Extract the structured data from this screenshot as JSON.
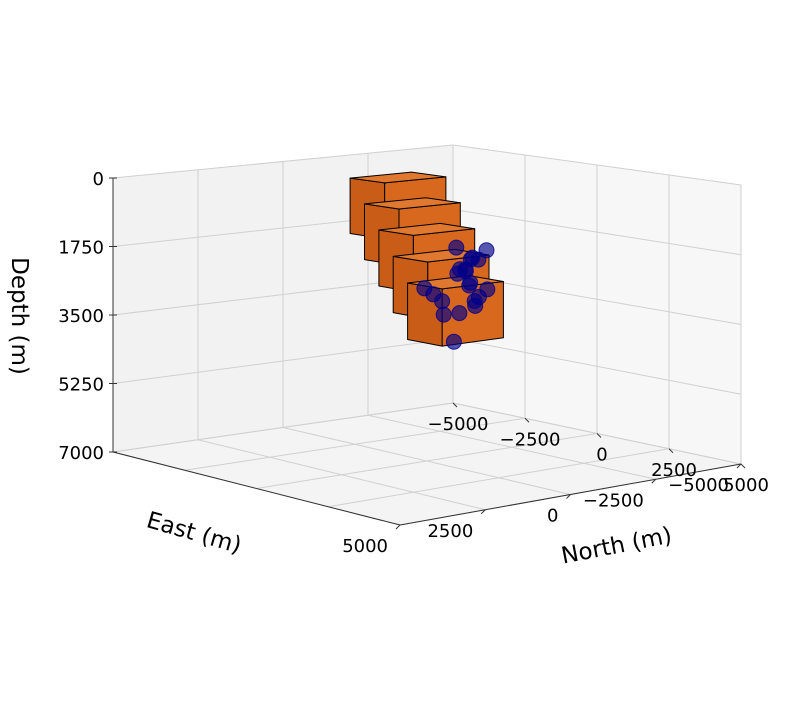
{
  "chart_data": {
    "type": "scatter3d",
    "axes": {
      "x": {
        "label": "East (m)",
        "ticks": [
          5000,
          2500,
          0,
          -2500,
          -5000
        ],
        "tick_labels": [
          "5000",
          "2500",
          "0",
          "−2500",
          "−5000"
        ],
        "range": [
          5000,
          -5000
        ]
      },
      "y": {
        "label": "North (m)",
        "ticks": [
          5000,
          2500,
          0,
          -2500,
          -5000
        ],
        "tick_labels": [
          "5000",
          "2500",
          "0",
          "−2500",
          "−5000"
        ],
        "range": [
          5000,
          -5000
        ]
      },
      "z": {
        "label": "Depth (m)",
        "ticks": [
          0,
          1750,
          3500,
          5250,
          7000
        ],
        "tick_labels": [
          "0",
          "1750",
          "3500",
          "5250",
          "7000"
        ],
        "range": [
          0,
          7000
        ],
        "inverted": true
      }
    },
    "grid": true,
    "boxes": {
      "color": "#D9681F",
      "items": [
        {
          "east": 0,
          "north": -1000,
          "depth_top": 0,
          "depth_bottom": 1400
        },
        {
          "east": 0,
          "north": -500,
          "depth_top": 600,
          "depth_bottom": 2000
        },
        {
          "east": 0,
          "north": 0,
          "depth_top": 1200,
          "depth_bottom": 2600
        },
        {
          "east": 0,
          "north": 500,
          "depth_top": 1800,
          "depth_bottom": 3200
        },
        {
          "east": 0,
          "north": 1000,
          "depth_top": 2400,
          "depth_bottom": 3800
        }
      ]
    },
    "events": {
      "color": "#00008B",
      "points": [
        {
          "east": 2600,
          "north": 3000,
          "depth": 2050
        },
        {
          "east": 2000,
          "north": 2600,
          "depth": 2300
        },
        {
          "east": 900,
          "north": 1600,
          "depth": 2700
        },
        {
          "east": 600,
          "north": 1300,
          "depth": 3100
        },
        {
          "east": 300,
          "north": 1300,
          "depth": 3800
        },
        {
          "east": -200,
          "north": 900,
          "depth": 3200
        },
        {
          "east": -600,
          "north": 800,
          "depth": 2500
        },
        {
          "east": -700,
          "north": 200,
          "depth": 1700
        },
        {
          "east": -900,
          "north": 0,
          "depth": 2400
        },
        {
          "east": -1400,
          "north": -500,
          "depth": 2400
        },
        {
          "east": -1800,
          "north": -600,
          "depth": 2200
        },
        {
          "east": -1500,
          "north": -300,
          "depth": 2800
        },
        {
          "east": -1700,
          "north": -200,
          "depth": 3100
        },
        {
          "east": -2200,
          "north": -500,
          "depth": 3000
        },
        {
          "east": -1900,
          "north": -900,
          "depth": 2500
        },
        {
          "east": -2000,
          "north": -700,
          "depth": 3300
        },
        {
          "east": -2100,
          "north": -800,
          "depth": 3450
        },
        {
          "east": -2600,
          "north": -1000,
          "depth": 2100
        },
        {
          "east": -2700,
          "north": -1400,
          "depth": 2400
        },
        {
          "east": -2500,
          "north": -1600,
          "depth": 2700
        },
        {
          "east": -3200,
          "north": -2200,
          "depth": 2500
        }
      ]
    }
  }
}
